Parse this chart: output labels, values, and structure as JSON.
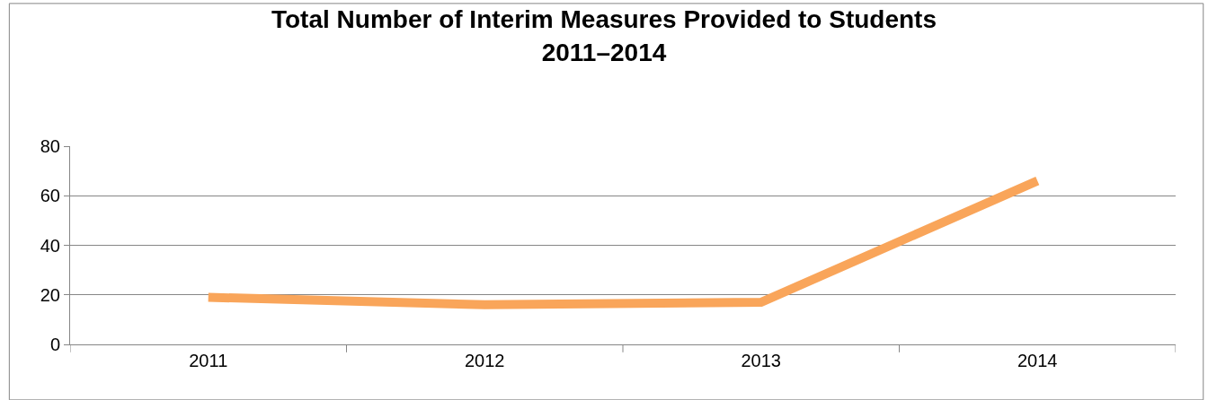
{
  "chart_data": {
    "type": "line",
    "title": "Total Number of Interim Measures Provided to Students\n2011–2014",
    "categories": [
      "2011",
      "2012",
      "2013",
      "2014"
    ],
    "series": [
      {
        "color": "#f9a55a",
        "values": [
          19,
          16,
          17,
          66
        ]
      }
    ],
    "ylim": [
      0,
      80
    ],
    "yticks": [
      0,
      20,
      40,
      60,
      80
    ],
    "grid": "y",
    "marker": "none",
    "line_style": "solid"
  }
}
